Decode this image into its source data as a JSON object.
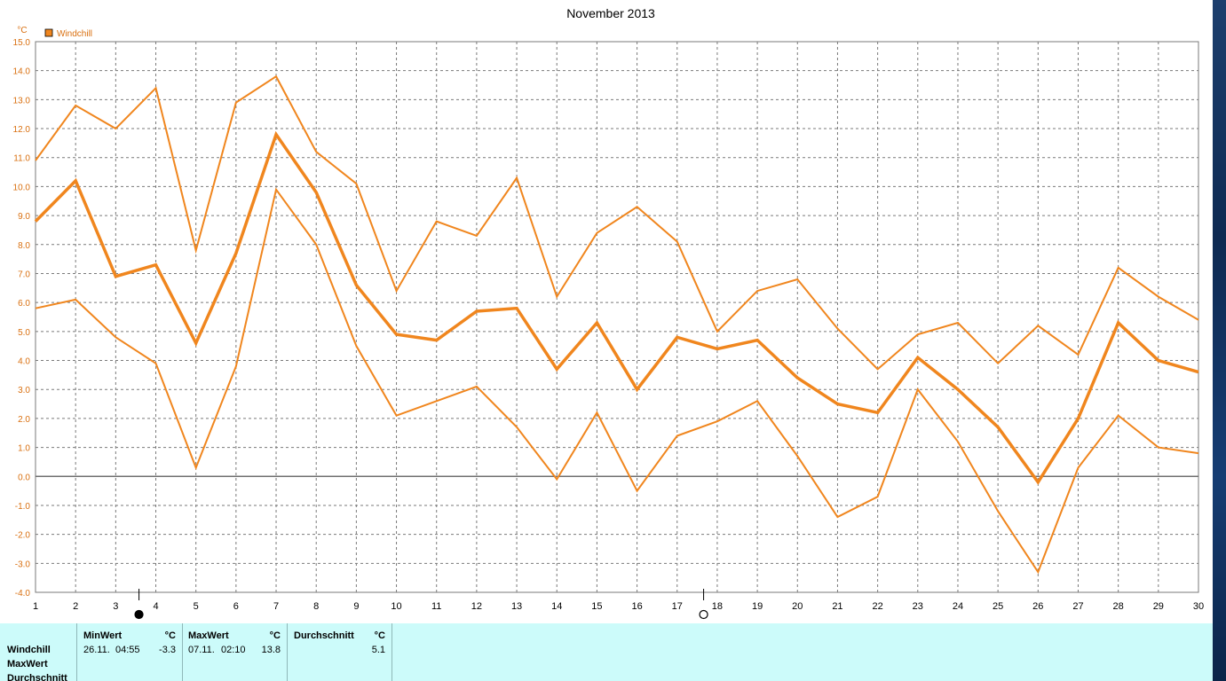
{
  "chart_data": {
    "type": "line",
    "title": "November 2013",
    "ylabel": "°C",
    "xlabel": "",
    "ylim": [
      -4.0,
      15.0
    ],
    "xlim": [
      1,
      30
    ],
    "grid": true,
    "legend": {
      "entries": [
        "Windchill"
      ],
      "placement": "top-left"
    },
    "x": [
      1,
      2,
      3,
      4,
      5,
      6,
      7,
      8,
      9,
      10,
      11,
      12,
      13,
      14,
      15,
      16,
      17,
      18,
      19,
      20,
      21,
      22,
      23,
      24,
      25,
      26,
      27,
      28,
      29,
      30
    ],
    "x_tick_labels": [
      "1",
      "2",
      "3",
      "4",
      "5",
      "6",
      "7",
      "8",
      "9",
      "10",
      "11",
      "12",
      "13",
      "14",
      "15",
      "16",
      "17",
      "18",
      "19",
      "20",
      "21",
      "22",
      "23",
      "24",
      "25",
      "26",
      "27",
      "28",
      "29",
      "30"
    ],
    "y_tick_labels": [
      "15.0",
      "14.0",
      "13.0",
      "12.0",
      "11.0",
      "10.0",
      "9.0",
      "8.0",
      "7.0",
      "6.0",
      "5.0",
      "4.0",
      "3.0",
      "2.0",
      "1.0",
      "0.0",
      "-1.0",
      "-2.0",
      "-3.0",
      "-4.0"
    ],
    "y_ticks": [
      15,
      14,
      13,
      12,
      11,
      10,
      9,
      8,
      7,
      6,
      5,
      4,
      3,
      2,
      1,
      0,
      -1,
      -2,
      -3,
      -4
    ],
    "series": [
      {
        "role": "max",
        "stroke_width": 2,
        "values": [
          10.9,
          12.8,
          12.0,
          13.4,
          7.8,
          12.9,
          13.8,
          11.2,
          10.1,
          6.4,
          8.8,
          8.3,
          10.3,
          6.2,
          8.4,
          9.3,
          8.1,
          5.0,
          6.4,
          6.8,
          5.1,
          3.7,
          4.9,
          5.3,
          3.9,
          5.2,
          4.2,
          7.2,
          6.2,
          5.4
        ]
      },
      {
        "role": "average",
        "stroke_width": 3.5,
        "values": [
          8.8,
          10.2,
          6.9,
          7.3,
          4.6,
          7.7,
          11.8,
          9.8,
          6.6,
          4.9,
          4.7,
          5.7,
          5.8,
          3.7,
          5.3,
          3.0,
          4.8,
          4.4,
          4.7,
          3.4,
          2.5,
          2.2,
          4.1,
          3.0,
          1.7,
          -0.2,
          2.0,
          5.3,
          4.0,
          3.6
        ]
      },
      {
        "role": "min",
        "stroke_width": 2,
        "values": [
          5.8,
          6.1,
          4.8,
          3.9,
          0.3,
          3.8,
          9.9,
          8.0,
          4.5,
          2.1,
          2.6,
          3.1,
          1.7,
          -0.1,
          2.2,
          -0.5,
          1.4,
          1.9,
          2.6,
          0.7,
          -1.4,
          -0.7,
          3.0,
          1.2,
          -1.2,
          -3.3,
          0.3,
          2.1,
          1.0,
          0.8
        ]
      }
    ],
    "moon_phases": [
      {
        "symbol": "●",
        "x": 3.58
      },
      {
        "symbol": "○",
        "x": 17.66
      }
    ],
    "colors": {
      "line": "#f0861e",
      "grid": "#7a7a7a",
      "axis": "#7a7a7a",
      "zero_line": "#707070",
      "tick_text": "#d96f0f",
      "title": "#000000",
      "legend_box": "#f0861e"
    }
  },
  "stats_table": {
    "row_labels": [
      "Windchill",
      "MaxWert",
      "Durchschnitt"
    ],
    "min": {
      "header": "MinWert",
      "unit": "°C",
      "date": "26.11.",
      "time": "04:55",
      "value": "-3.3"
    },
    "max": {
      "header": "MaxWert",
      "unit": "°C",
      "date": "07.11.",
      "time": "02:10",
      "value": "13.8"
    },
    "avg": {
      "header": "Durchschnitt",
      "unit": "°C",
      "value": "5.1"
    }
  }
}
